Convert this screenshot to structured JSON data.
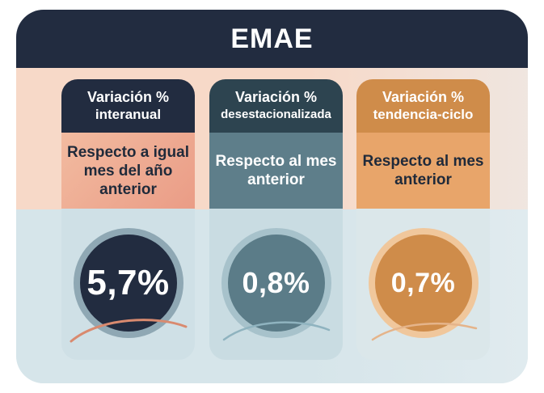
{
  "title": "EMAE",
  "columns": [
    {
      "label_line1": "Variación %",
      "label_line2": "interanual",
      "description": "Respecto a igual mes del año anterior",
      "value": "5,7%",
      "color": "#222c40"
    },
    {
      "label_line1": "Variación %",
      "label_line2": "desestacionalizada",
      "description": "Respecto al mes anterior",
      "value": "0,8%",
      "color": "#5b7c88"
    },
    {
      "label_line1": "Variación %",
      "label_line2": "tendencia-ciclo",
      "description": "Respecto al mes anterior",
      "value": "0,7%",
      "color": "#cf8c4a"
    }
  ]
}
